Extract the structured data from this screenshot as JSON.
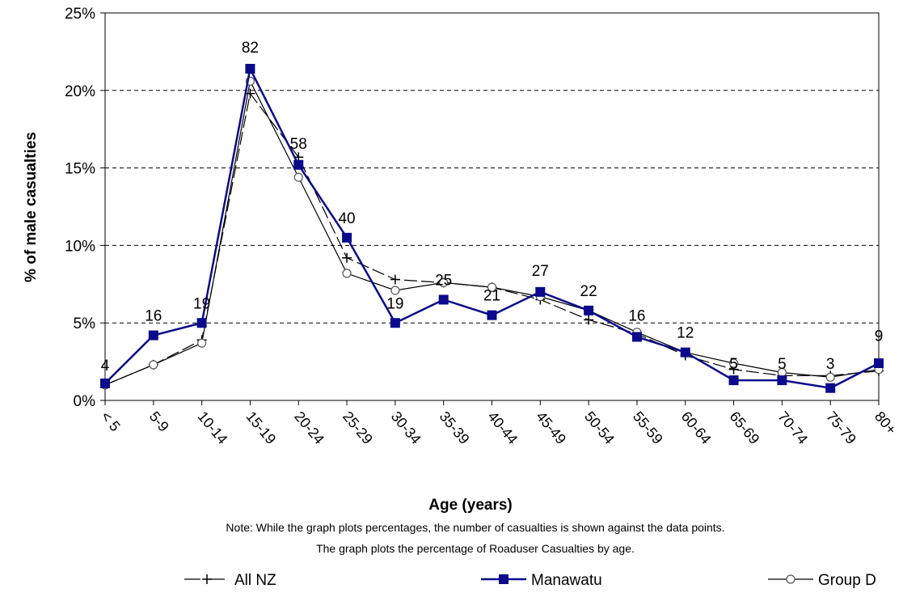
{
  "chart_data": {
    "type": "line",
    "xlabel": "Age (years)",
    "ylabel": "% of male casualties",
    "ylim": [
      0,
      25
    ],
    "yticks": [
      "0%",
      "5%",
      "10%",
      "15%",
      "20%",
      "25%"
    ],
    "grid": "horizontal dashed",
    "legend": "bottom",
    "categories": [
      "< 5",
      "5-9",
      "10-14",
      "15-19",
      "20-24",
      "25-29",
      "30-34",
      "35-39",
      "40-44",
      "45-49",
      "50-54",
      "55-59",
      "60-64",
      "65-69",
      "70-74",
      "75-79",
      "80+"
    ],
    "series": [
      {
        "name": "All NZ",
        "marker": "plus",
        "dash": "long",
        "color": "#000000",
        "values": [
          1.0,
          2.3,
          3.9,
          19.8,
          15.7,
          9.2,
          7.8,
          7.6,
          7.3,
          6.5,
          5.2,
          4.3,
          2.9,
          2.0,
          1.6,
          1.6,
          1.9
        ]
      },
      {
        "name": "Manawatu",
        "marker": "square",
        "dash": "solid",
        "color": "#0a0a8a",
        "values": [
          1.1,
          4.2,
          5.0,
          21.4,
          15.2,
          10.5,
          5.0,
          6.5,
          5.5,
          7.0,
          5.8,
          4.1,
          3.1,
          1.3,
          1.3,
          0.8,
          2.4
        ]
      },
      {
        "name": "Group D",
        "marker": "circle",
        "dash": "solid",
        "color": "#000000",
        "values": [
          1.0,
          2.3,
          3.7,
          20.6,
          14.4,
          8.2,
          7.1,
          7.6,
          7.3,
          6.7,
          5.8,
          4.4,
          3.1,
          2.4,
          1.8,
          1.5,
          2.0
        ]
      }
    ],
    "data_labels": [
      "4",
      "16",
      "19",
      "82",
      "58",
      "40",
      "19",
      "25",
      "21",
      "27",
      "22",
      "16",
      "12",
      "5",
      "5",
      "3",
      "9"
    ],
    "data_label_y": [
      2.3,
      5.5,
      6.3,
      22.8,
      16.6,
      11.8,
      6.3,
      7.8,
      6.8,
      8.4,
      7.1,
      5.5,
      4.4,
      2.4,
      2.4,
      2.4,
      4.2
    ],
    "notes": [
      "Note: While the graph plots percentages, the number of casualties is shown against the  data points.",
      "The graph plots the percentage of Roaduser Casualties by age."
    ]
  }
}
